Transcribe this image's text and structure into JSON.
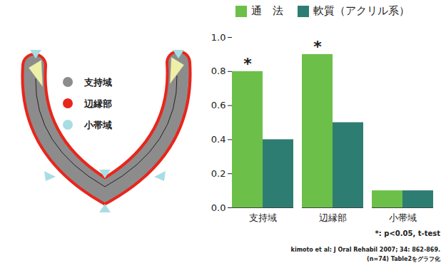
{
  "chart_data": {
    "type": "bar",
    "categories": [
      "支持域",
      "辺縁部",
      "小帯域"
    ],
    "series": [
      {
        "name": "通　法",
        "color": "#6cc04a",
        "values": [
          0.8,
          0.9,
          0.1
        ]
      },
      {
        "name": "軟質（アクリル系）",
        "color": "#2e7d72",
        "values": [
          0.4,
          0.5,
          0.1
        ]
      }
    ],
    "ylim": [
      0,
      1.0
    ],
    "yticks": [
      {
        "value": 0,
        "label": "0.0"
      },
      {
        "value": 0.2,
        "label": "0.2"
      },
      {
        "value": 0.4,
        "label": "0.4"
      },
      {
        "value": 0.6,
        "label": "0.6"
      },
      {
        "value": 0.8,
        "label": "0.8"
      },
      {
        "value": 1.0,
        "label": "1.0"
      }
    ],
    "grid": false,
    "legend": "top",
    "annotations": [
      {
        "category": "支持域",
        "series": "通　法",
        "text": "*"
      },
      {
        "category": "辺縁部",
        "series": "通　法",
        "text": "*"
      }
    ],
    "notes": [
      "*: p<0.05, t-test",
      "kimoto et al: J Oral Rehabil 2007; 34: 862-869.",
      "(n=74) Table2をグラフ化"
    ]
  },
  "diagram": {
    "legend": [
      {
        "label": "支持域",
        "color": "#8c8c8c"
      },
      {
        "label": "辺縁部",
        "color": "#e8261c"
      },
      {
        "label": "小帯域",
        "color": "#a8dde4"
      }
    ]
  }
}
